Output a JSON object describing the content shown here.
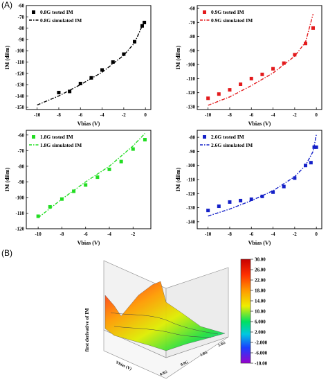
{
  "panel_labels": {
    "a": "(A)",
    "b": "(B)"
  },
  "colors": {
    "series1": "#000000",
    "series2": "#e31a1c",
    "series3": "#22dd22",
    "series4": "#1420c8"
  },
  "chart_data": [
    {
      "type": "scatter+line",
      "xlabel": "Vbias (V)",
      "ylabel": "IM (dBm)",
      "xlim": [
        -11,
        0.5
      ],
      "ylim": [
        -152,
        -60
      ],
      "xticks": [
        -10,
        -8,
        -6,
        -4,
        -2,
        0
      ],
      "yticks": [
        -150,
        -140,
        -130,
        -120,
        -110,
        -100,
        -90,
        -80,
        -70,
        -60
      ],
      "series": [
        {
          "name": "0.8G tested IM",
          "kind": "marker",
          "x": [
            -8,
            -7,
            -6,
            -5,
            -4,
            -3,
            -2,
            -1,
            -0.3,
            -0.1
          ],
          "y": [
            -137,
            -136,
            -129,
            -124,
            -117,
            -110,
            -103,
            -92,
            -78,
            -75
          ]
        },
        {
          "name": "0.8G simulated IM",
          "kind": "line",
          "x": [
            -10,
            -8,
            -6,
            -4,
            -2,
            -1,
            -0.3
          ],
          "y": [
            -148,
            -140,
            -130,
            -119,
            -104,
            -93,
            -78
          ]
        }
      ],
      "legend": "top-left"
    },
    {
      "type": "scatter+line",
      "xlabel": "Vbias (V)",
      "ylabel": "IM (dBm)",
      "xlim": [
        -11,
        0.5
      ],
      "ylim": [
        -132,
        -58
      ],
      "xticks": [
        -10,
        -8,
        -6,
        -4,
        -2,
        0
      ],
      "yticks": [
        -130,
        -120,
        -110,
        -100,
        -90,
        -80,
        -70,
        -60
      ],
      "series": [
        {
          "name": "0.9G tested IM",
          "kind": "marker",
          "x": [
            -10,
            -9,
            -8,
            -7,
            -6,
            -5,
            -4,
            -3,
            -2,
            -1,
            -0.3
          ],
          "y": [
            -124,
            -121,
            -118,
            -114,
            -110,
            -107,
            -103,
            -99,
            -93,
            -85,
            -74
          ]
        },
        {
          "name": "0.9G simulated IM",
          "kind": "line",
          "x": [
            -10,
            -8,
            -6,
            -4,
            -2,
            -1,
            -0.3
          ],
          "y": [
            -129,
            -123,
            -115,
            -106,
            -94,
            -84,
            -64
          ]
        }
      ],
      "legend": "top-left"
    },
    {
      "type": "scatter+line",
      "xlabel": "Vbias (V)",
      "ylabel": "IM (dBm)",
      "xlim": [
        -11,
        -0.5
      ],
      "ylim": [
        -120,
        -57
      ],
      "xticks": [
        -10,
        -8,
        -6,
        -4,
        -2
      ],
      "yticks": [
        -120,
        -110,
        -100,
        -90,
        -80,
        -70,
        -60
      ],
      "series": [
        {
          "name": "1.8G tested IM",
          "kind": "marker",
          "x": [
            -10,
            -9,
            -8,
            -7,
            -6,
            -5,
            -4,
            -3,
            -2,
            -1
          ],
          "y": [
            -112,
            -106,
            -101,
            -96,
            -92,
            -87,
            -82,
            -77,
            -69,
            -63
          ]
        },
        {
          "name": "1.8G simulated IM",
          "kind": "line",
          "x": [
            -10,
            -8,
            -6,
            -4,
            -2,
            -1
          ],
          "y": [
            -113,
            -101,
            -90,
            -80,
            -67,
            -59
          ]
        }
      ],
      "legend": "top-left"
    },
    {
      "type": "scatter+line",
      "xlabel": "Vbias (V)",
      "ylabel": "IM (dBm)",
      "xlim": [
        -11,
        0.5
      ],
      "ylim": [
        -145,
        -75
      ],
      "xticks": [
        -10,
        -8,
        -6,
        -4,
        -2,
        0
      ],
      "yticks": [
        -140,
        -130,
        -120,
        -110,
        -100,
        -90,
        -80
      ],
      "series": [
        {
          "name": "2.6G tested IM",
          "kind": "marker",
          "x": [
            -10,
            -9,
            -8,
            -7,
            -6,
            -5,
            -4,
            -3,
            -2,
            -1,
            -0.5,
            -0.2,
            0
          ],
          "y": [
            -132,
            -129,
            -126,
            -125,
            -124,
            -122,
            -119,
            -115,
            -109,
            -100,
            -98,
            -87,
            -87
          ]
        },
        {
          "name": "2.6G simulated IM",
          "kind": "line",
          "x": [
            -10,
            -8,
            -6,
            -4,
            -2,
            -1,
            -0.3,
            0
          ],
          "y": [
            -136,
            -131,
            -125,
            -118,
            -108,
            -100,
            -90,
            -78
          ]
        }
      ],
      "legend": "top-left"
    },
    {
      "type": "surface3d",
      "zlabel": "first derivative of IM",
      "xlabel": "Vbias (V)",
      "frequency_ticks": [
        "0.8G",
        "0.9G",
        "1.8G",
        "2.6G"
      ],
      "colorbar_ticks": [
        "30.00",
        "26.00",
        "22.00",
        "18.00",
        "14.00",
        "10.00",
        "6.000",
        "2.000",
        "-2.000",
        "-6.000",
        "-10.00"
      ],
      "colorbar_range": [
        -10,
        30
      ]
    }
  ]
}
